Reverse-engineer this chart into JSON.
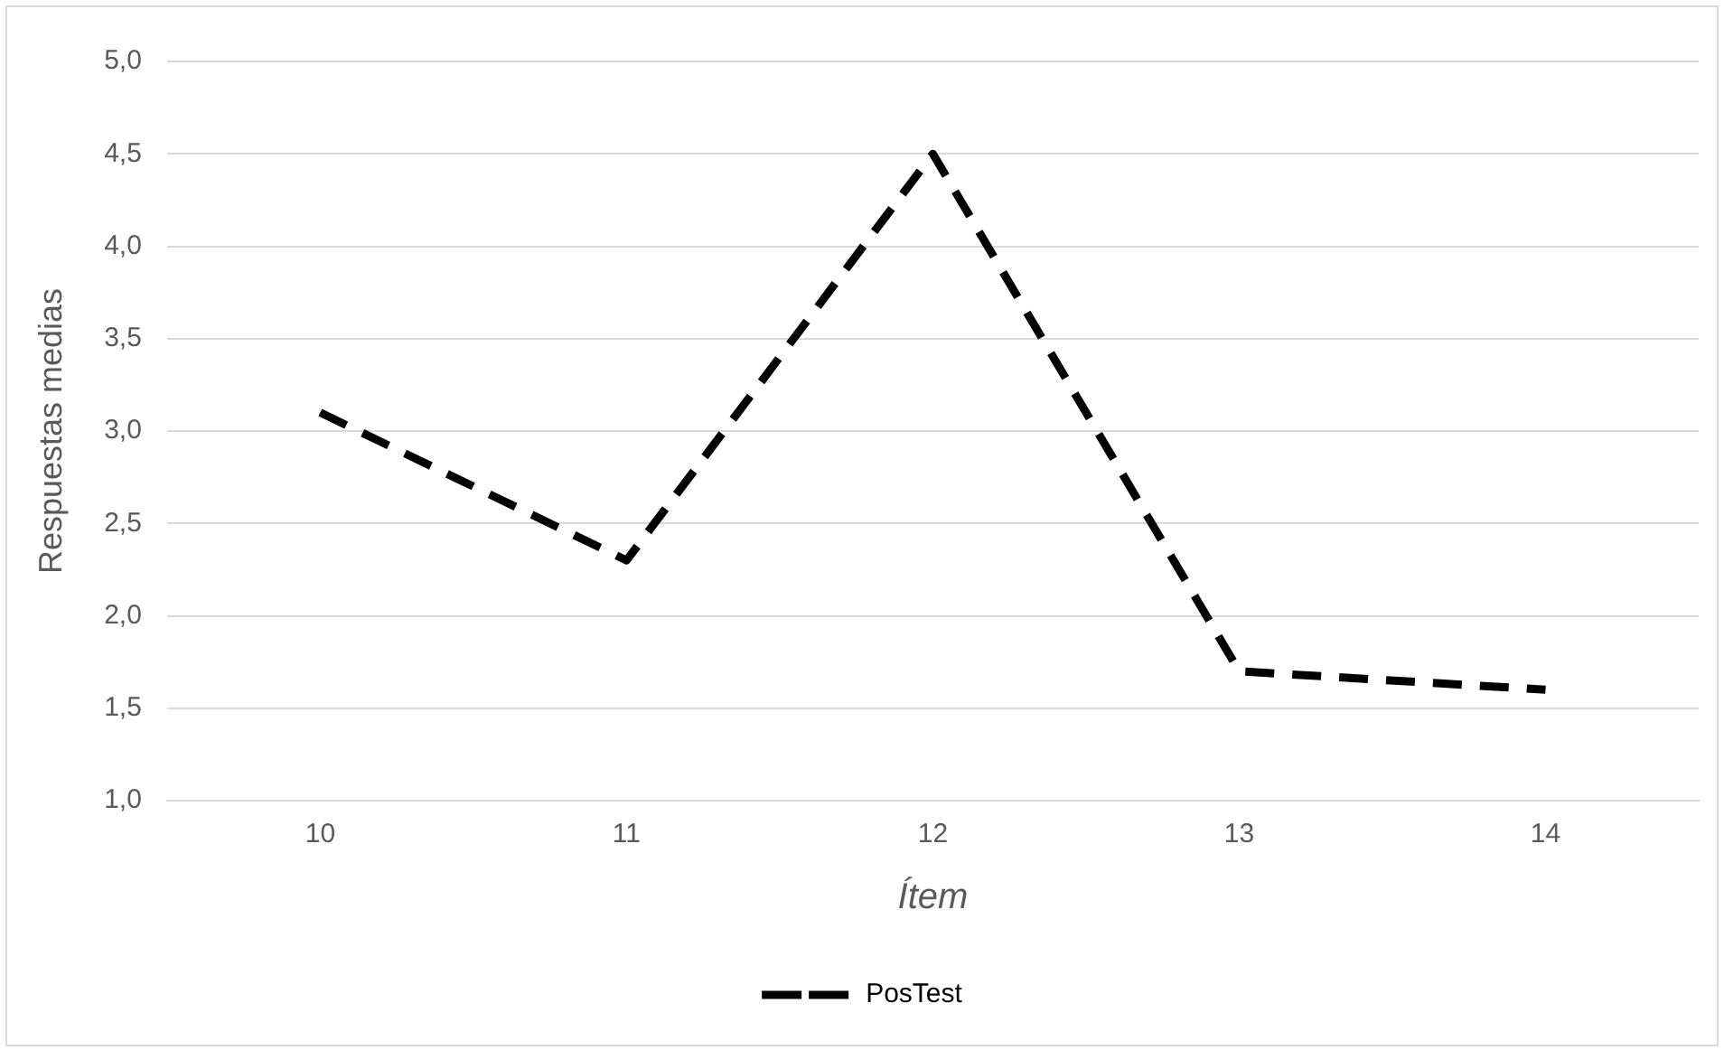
{
  "chart_data": {
    "type": "line",
    "xlabel": "Ítem",
    "ylabel": "Respuestas medias",
    "categories": [
      "10",
      "11",
      "12",
      "13",
      "14"
    ],
    "series": [
      {
        "name": "PosTest",
        "color": "#000000",
        "values": [
          3.1,
          2.3,
          4.5,
          1.7,
          1.6
        ]
      }
    ],
    "ylim": [
      1,
      5
    ],
    "yticks": [
      {
        "value": 1,
        "label": "1,0"
      },
      {
        "value": 1.5,
        "label": "1,5"
      },
      {
        "value": 2,
        "label": "2,0"
      },
      {
        "value": 2.5,
        "label": "2,5"
      },
      {
        "value": 3,
        "label": "3,0"
      },
      {
        "value": 3.5,
        "label": "3,5"
      },
      {
        "value": 4,
        "label": "4,0"
      },
      {
        "value": 4.5,
        "label": "4,5"
      },
      {
        "value": 5,
        "label": "5,0"
      }
    ],
    "grid": "y",
    "legend": "bottom",
    "marker": "none",
    "line_style": "dashed"
  }
}
